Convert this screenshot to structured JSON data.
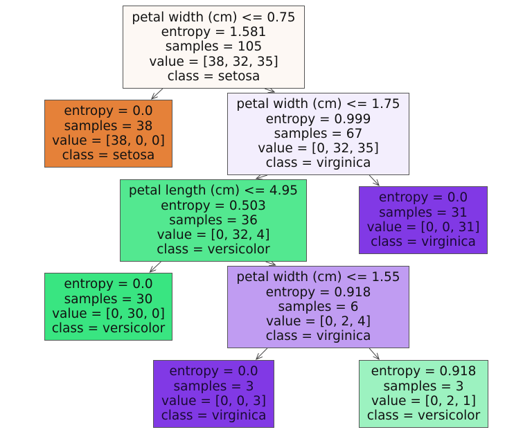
{
  "tree": {
    "nodes": [
      {
        "id": "n0",
        "color": "#fdf8f4",
        "lines": [
          "petal width (cm) <= 0.75",
          "entropy = 1.581",
          "samples = 105",
          "value = [38, 32, 35]",
          "class = setosa"
        ]
      },
      {
        "id": "n1",
        "color": "#e58139",
        "lines": [
          "entropy = 0.0",
          "samples = 38",
          "value = [38, 0, 0]",
          "class = setosa"
        ]
      },
      {
        "id": "n2",
        "color": "#f3eefd",
        "lines": [
          "petal width (cm) <= 1.75",
          "entropy = 0.999",
          "samples = 67",
          "value = [0, 32, 35]",
          "class = virginica"
        ]
      },
      {
        "id": "n3",
        "color": "#53e890",
        "lines": [
          "petal length (cm) <= 4.95",
          "entropy = 0.503",
          "samples = 36",
          "value = [0, 32, 4]",
          "class = versicolor"
        ]
      },
      {
        "id": "n4",
        "color": "#8139e5",
        "lines": [
          "entropy = 0.0",
          "samples = 31",
          "value = [0, 0, 31]",
          "class = virginica"
        ]
      },
      {
        "id": "n5",
        "color": "#39e581",
        "lines": [
          "entropy = 0.0",
          "samples = 30",
          "value = [0, 30, 0]",
          "class = versicolor"
        ]
      },
      {
        "id": "n6",
        "color": "#c09cf2",
        "lines": [
          "petal width (cm) <= 1.55",
          "entropy = 0.918",
          "samples = 6",
          "value = [0, 2, 4]",
          "class = virginica"
        ]
      },
      {
        "id": "n7",
        "color": "#8139e5",
        "lines": [
          "entropy = 0.0",
          "samples = 3",
          "value = [0, 0, 3]",
          "class = virginica"
        ]
      },
      {
        "id": "n8",
        "color": "#9cf2c0",
        "lines": [
          "entropy = 0.918",
          "samples = 3",
          "value = [0, 2, 1]",
          "class = versicolor"
        ]
      }
    ],
    "edges": [
      [
        "n0",
        "n1"
      ],
      [
        "n0",
        "n2"
      ],
      [
        "n2",
        "n3"
      ],
      [
        "n2",
        "n4"
      ],
      [
        "n3",
        "n5"
      ],
      [
        "n3",
        "n6"
      ],
      [
        "n6",
        "n7"
      ],
      [
        "n6",
        "n8"
      ]
    ]
  }
}
